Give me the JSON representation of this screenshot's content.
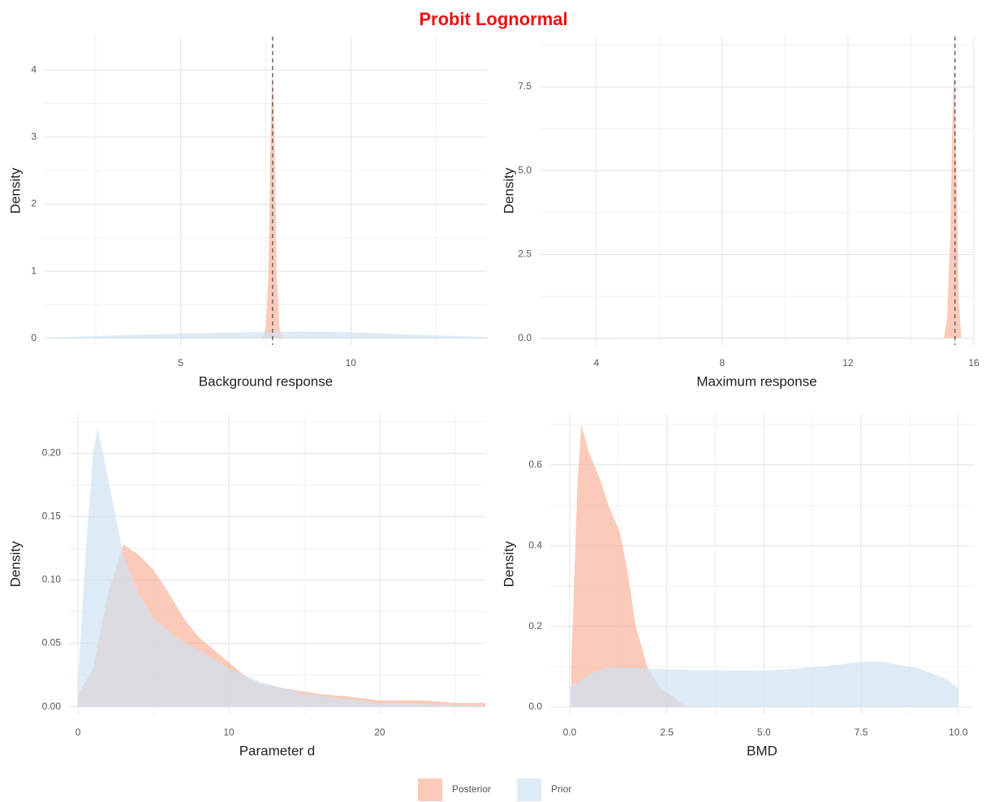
{
  "title": "Probit Lognormal",
  "legend": {
    "entries": [
      {
        "name": "Posterior",
        "color": "#fbb49b"
      },
      {
        "name": "Prior",
        "color": "#cfe3f2"
      }
    ]
  },
  "chart_data": [
    {
      "type": "area",
      "xlabel": "Background response",
      "ylabel": "Density",
      "xlim": [
        1,
        14
      ],
      "ylim": [
        -0.1,
        4.5
      ],
      "xticks": [
        5,
        10
      ],
      "yticks": [
        0,
        1,
        2,
        3,
        4
      ],
      "xminor": [
        2.5,
        7.5,
        12.5
      ],
      "yminor": [
        0.5,
        1.5,
        2.5,
        3.5
      ],
      "grid": true,
      "vline": 7.7,
      "series": [
        {
          "x": [
            7.4,
            7.5,
            7.58,
            7.64,
            7.7,
            7.76,
            7.82,
            7.9,
            8.0
          ],
          "values": [
            0,
            0.15,
            1.0,
            3.0,
            4.1,
            3.0,
            1.0,
            0.15,
            0
          ]
        },
        {
          "x": [
            1,
            3,
            5,
            7,
            8.5,
            10,
            12,
            14
          ],
          "values": [
            0.01,
            0.04,
            0.07,
            0.09,
            0.1,
            0.09,
            0.05,
            0.02
          ]
        }
      ]
    },
    {
      "type": "area",
      "xlabel": "Maximum response",
      "ylabel": "Density",
      "xlim": [
        2.2,
        16
      ],
      "ylim": [
        -0.2,
        9.0
      ],
      "xticks": [
        4,
        8,
        12,
        16
      ],
      "yticks": [
        {
          "value": 0,
          "label": "0.0"
        },
        2.5,
        {
          "value": 5,
          "label": "5.0"
        },
        7.5
      ],
      "xminor": [
        6,
        10,
        14
      ],
      "yminor": [
        1.25,
        3.75,
        6.25,
        8.75
      ],
      "grid": true,
      "vline": 15.4,
      "series": [
        {
          "x": [
            15.05,
            15.15,
            15.25,
            15.32,
            15.38,
            15.45,
            15.52,
            15.6
          ],
          "values": [
            0,
            0.6,
            3.0,
            6.5,
            8.3,
            5.0,
            1.2,
            0
          ]
        },
        {
          "x": [
            2.2,
            6,
            10,
            14,
            16
          ],
          "values": [
            0.01,
            0.02,
            0.02,
            0.02,
            0.01
          ]
        }
      ]
    },
    {
      "type": "area",
      "xlabel": "Parameter d",
      "ylabel": "Density",
      "xlim": [
        -0.6,
        27
      ],
      "ylim": [
        -0.006,
        0.231
      ],
      "xticks": [
        0,
        10,
        20
      ],
      "yticks": [
        {
          "value": 0,
          "label": "0.00"
        },
        0.05,
        {
          "value": 0.1,
          "label": "0.10"
        },
        0.15,
        {
          "value": 0.2,
          "label": "0.20"
        }
      ],
      "xminor": [
        5,
        15,
        25
      ],
      "yminor": [
        0.025,
        0.075,
        0.125,
        0.175,
        0.225
      ],
      "grid": true,
      "series": [
        {
          "x": [
            0,
            1,
            2,
            3,
            4,
            5,
            6,
            7,
            8,
            9,
            10,
            11,
            12,
            14,
            16,
            18,
            20,
            23,
            25,
            27
          ],
          "values": [
            0.01,
            0.03,
            0.09,
            0.128,
            0.12,
            0.108,
            0.09,
            0.07,
            0.055,
            0.045,
            0.035,
            0.025,
            0.018,
            0.014,
            0.01,
            0.008,
            0.005,
            0.005,
            0.003,
            0.003
          ]
        },
        {
          "x": [
            0,
            0.5,
            1,
            1.3,
            2,
            3,
            4,
            5,
            6.5,
            8,
            10,
            12,
            15,
            20,
            27
          ],
          "values": [
            0.02,
            0.12,
            0.2,
            0.22,
            0.18,
            0.12,
            0.09,
            0.07,
            0.055,
            0.045,
            0.03,
            0.02,
            0.01,
            0.003,
            0.001
          ]
        }
      ]
    },
    {
      "type": "area",
      "xlabel": "BMD",
      "ylabel": "Density",
      "xlim": [
        -0.5,
        10.4
      ],
      "ylim": [
        -0.018,
        0.726
      ],
      "xticks": [
        {
          "value": 0,
          "label": "0.0"
        },
        2.5,
        {
          "value": 5,
          "label": "5.0"
        },
        7.5,
        {
          "value": 10,
          "label": "10.0"
        }
      ],
      "yticks": [
        {
          "value": 0,
          "label": "0.0"
        },
        0.2,
        0.4,
        0.6
      ],
      "xminor": [
        1.25,
        3.75,
        6.25,
        8.75
      ],
      "yminor": [
        0.1,
        0.3,
        0.5,
        0.7
      ],
      "grid": true,
      "series": [
        {
          "x": [
            0.04,
            0.2,
            0.3,
            0.5,
            0.8,
            1.0,
            1.3,
            1.5,
            1.7,
            2.0,
            2.3,
            2.6,
            3.0
          ],
          "values": [
            0.1,
            0.55,
            0.7,
            0.63,
            0.56,
            0.5,
            0.43,
            0.33,
            0.2,
            0.1,
            0.05,
            0.03,
            0
          ]
        },
        {
          "x": [
            0,
            0.5,
            1,
            2,
            3,
            5,
            6.5,
            7.5,
            8,
            9,
            9.7,
            10
          ],
          "values": [
            0.05,
            0.08,
            0.1,
            0.095,
            0.092,
            0.09,
            0.1,
            0.112,
            0.113,
            0.095,
            0.07,
            0.045
          ]
        }
      ]
    }
  ]
}
